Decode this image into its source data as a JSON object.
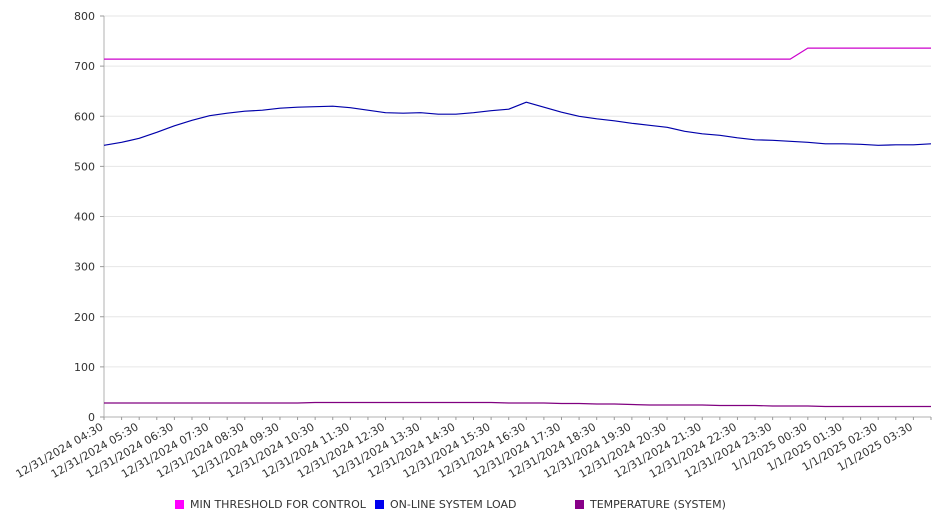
{
  "chart_data": {
    "type": "line",
    "title": "",
    "xlabel": "",
    "ylabel": "",
    "ylim": [
      0,
      800
    ],
    "yticks": [
      0,
      100,
      200,
      300,
      400,
      500,
      600,
      700,
      800
    ],
    "grid": true,
    "legend_position": "bottom",
    "x_tick_labels": [
      "12/31/2024 04:30",
      "12/31/2024 05:30",
      "12/31/2024 06:30",
      "12/31/2024 07:30",
      "12/31/2024 08:30",
      "12/31/2024 09:30",
      "12/31/2024 10:30",
      "12/31/2024 11:30",
      "12/31/2024 12:30",
      "12/31/2024 13:30",
      "12/31/2024 14:30",
      "12/31/2024 15:30",
      "12/31/2024 16:30",
      "12/31/2024 17:30",
      "12/31/2024 18:30",
      "12/31/2024 19:30",
      "12/31/2024 20:30",
      "12/31/2024 21:30",
      "12/31/2024 22:30",
      "12/31/2024 23:30",
      "1/1/2025 00:30",
      "1/1/2025 01:30",
      "1/1/2025 02:30",
      "1/1/2025 03:30"
    ],
    "x": [
      "12/31/2024 04:30",
      "12/31/2024 05:00",
      "12/31/2024 05:30",
      "12/31/2024 06:00",
      "12/31/2024 06:30",
      "12/31/2024 07:00",
      "12/31/2024 07:30",
      "12/31/2024 08:00",
      "12/31/2024 08:30",
      "12/31/2024 09:00",
      "12/31/2024 09:30",
      "12/31/2024 10:00",
      "12/31/2024 10:30",
      "12/31/2024 11:00",
      "12/31/2024 11:30",
      "12/31/2024 12:00",
      "12/31/2024 12:30",
      "12/31/2024 13:00",
      "12/31/2024 13:30",
      "12/31/2024 14:00",
      "12/31/2024 14:30",
      "12/31/2024 15:00",
      "12/31/2024 15:30",
      "12/31/2024 16:00",
      "12/31/2024 16:30",
      "12/31/2024 17:00",
      "12/31/2024 17:30",
      "12/31/2024 18:00",
      "12/31/2024 18:30",
      "12/31/2024 19:00",
      "12/31/2024 19:30",
      "12/31/2024 20:00",
      "12/31/2024 20:30",
      "12/31/2024 21:00",
      "12/31/2024 21:30",
      "12/31/2024 22:00",
      "12/31/2024 22:30",
      "12/31/2024 23:00",
      "12/31/2024 23:30",
      "1/1/2025 00:00",
      "1/1/2025 00:30",
      "1/1/2025 01:00",
      "1/1/2025 01:30",
      "1/1/2025 02:00",
      "1/1/2025 02:30",
      "1/1/2025 03:00",
      "1/1/2025 03:30",
      "1/1/2025 04:00"
    ],
    "series": [
      {
        "name": "MIN THRESHOLD FOR CONTROL",
        "color": "#cc00cc",
        "swatch_color": "#ff00ff",
        "values": [
          714,
          714,
          714,
          714,
          714,
          714,
          714,
          714,
          714,
          714,
          714,
          714,
          714,
          714,
          714,
          714,
          714,
          714,
          714,
          714,
          714,
          714,
          714,
          714,
          714,
          714,
          714,
          714,
          714,
          714,
          714,
          714,
          714,
          714,
          714,
          714,
          714,
          714,
          714,
          714,
          736,
          736,
          736,
          736,
          736,
          736,
          736,
          736
        ]
      },
      {
        "name": "ON-LINE SYSTEM LOAD",
        "color": "#0000aa",
        "swatch_color": "#0000ee",
        "values": [
          542,
          548,
          556,
          568,
          581,
          592,
          601,
          606,
          610,
          612,
          616,
          618,
          619,
          620,
          617,
          612,
          607,
          606,
          607,
          604,
          604,
          607,
          611,
          614,
          628,
          618,
          608,
          600,
          595,
          591,
          586,
          582,
          578,
          570,
          565,
          562,
          557,
          553,
          552,
          550,
          548,
          545,
          545,
          544,
          542,
          543,
          543,
          545
        ]
      },
      {
        "name": "TEMPERATURE (SYSTEM)",
        "color": "#800080",
        "swatch_color": "#880088",
        "values": [
          28,
          28,
          28,
          28,
          28,
          28,
          28,
          28,
          28,
          28,
          28,
          28,
          29,
          29,
          29,
          29,
          29,
          29,
          29,
          29,
          29,
          29,
          29,
          28,
          28,
          28,
          27,
          27,
          26,
          26,
          25,
          24,
          24,
          24,
          24,
          23,
          23,
          23,
          22,
          22,
          22,
          21,
          21,
          21,
          21,
          21,
          21,
          21
        ]
      }
    ]
  }
}
